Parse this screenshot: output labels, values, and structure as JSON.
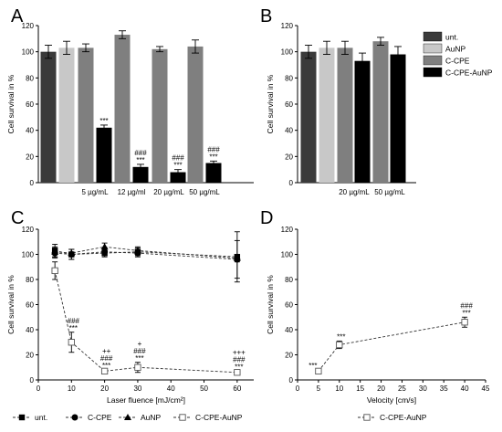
{
  "colors": {
    "unt": "#3a3a3a",
    "aunp": "#c8c8c8",
    "ccpe": "#7f7f7f",
    "ccpe_aunp": "#000000"
  },
  "legend_top": [
    "unt.",
    "AuNP",
    "C-CPE",
    "C-CPE-AuNP"
  ],
  "legend_bottom": [
    {
      "label": "unt.",
      "marker": "square-filled"
    },
    {
      "label": "C-CPE",
      "marker": "circle-filled"
    },
    {
      "label": "AuNP",
      "marker": "triangle-filled"
    },
    {
      "label": "C-CPE-AuNP",
      "marker": "square-open"
    }
  ],
  "legend_d": "C-CPE-AuNP",
  "chart_data": [
    {
      "panel": "A",
      "type": "bar",
      "ylabel": "Cell survival in %",
      "ylim": [
        0,
        120
      ],
      "yticks": [
        0,
        20,
        40,
        60,
        80,
        100,
        120
      ],
      "series_order": [
        "unt.",
        "AuNP",
        "C-CPE",
        "C-CPE-AuNP",
        "C-CPE",
        "C-CPE-AuNP",
        "C-CPE",
        "C-CPE-AuNP",
        "C-CPE",
        "C-CPE-AuNP"
      ],
      "values": [
        100,
        103,
        103,
        42,
        113,
        12,
        102,
        8,
        104,
        15
      ],
      "errors": [
        5,
        5,
        3,
        2,
        3,
        2,
        2,
        2,
        5,
        1.5
      ],
      "group_labels": [
        "5 µg/mL",
        "12 µg/ml",
        "20 µg/mL",
        "50 µg/mL"
      ],
      "annotations": [
        {
          "bar": 3,
          "lines": [
            "***"
          ]
        },
        {
          "bar": 5,
          "lines": [
            "###",
            "***"
          ]
        },
        {
          "bar": 7,
          "lines": [
            "###",
            "***"
          ]
        },
        {
          "bar": 9,
          "lines": [
            "###",
            "***"
          ]
        }
      ]
    },
    {
      "panel": "B",
      "type": "bar",
      "ylabel": "Cell survival in %",
      "ylim": [
        0,
        120
      ],
      "yticks": [
        0,
        20,
        40,
        60,
        80,
        100,
        120
      ],
      "series_order": [
        "unt.",
        "AuNP",
        "C-CPE",
        "C-CPE-AuNP",
        "C-CPE",
        "C-CPE-AuNP"
      ],
      "values": [
        100,
        103,
        103,
        93,
        108,
        98
      ],
      "errors": [
        5,
        5,
        5,
        6,
        3,
        6
      ],
      "group_labels": [
        "20 µg/mL",
        "50 µg/mL"
      ]
    },
    {
      "panel": "C",
      "type": "line",
      "xlabel": "Laser fluence [mJ/cm²]",
      "ylabel": "Cell survival in %",
      "xlim": [
        0,
        65
      ],
      "ylim": [
        0,
        120
      ],
      "xticks": [
        0,
        10,
        20,
        30,
        40,
        50,
        60
      ],
      "yticks": [
        0,
        20,
        40,
        60,
        80,
        100,
        120
      ],
      "x": [
        5,
        10,
        20,
        30,
        60
      ],
      "series": [
        {
          "name": "unt.",
          "values": [
            103,
            100,
            101,
            102,
            98
          ],
          "errors": [
            5,
            4,
            3,
            3,
            20
          ],
          "marker": "square-filled"
        },
        {
          "name": "C-CPE",
          "values": [
            101,
            100,
            102,
            101,
            96
          ],
          "errors": [
            4,
            4,
            3,
            3,
            15
          ],
          "marker": "circle-filled"
        },
        {
          "name": "AuNP",
          "values": [
            102,
            101,
            106,
            103,
            97
          ],
          "errors": [
            4,
            3,
            3,
            3,
            3
          ],
          "marker": "triangle-filled"
        },
        {
          "name": "C-CPE-AuNP",
          "values": [
            87,
            30,
            7,
            10,
            6
          ],
          "errors": [
            7,
            8,
            1,
            4,
            1
          ],
          "marker": "square-open"
        }
      ],
      "annotations": [
        {
          "x": 10,
          "lines": [
            "###",
            "***"
          ]
        },
        {
          "x": 20,
          "lines": [
            "++",
            "###",
            "***"
          ]
        },
        {
          "x": 30,
          "lines": [
            "+",
            "###",
            "***"
          ]
        },
        {
          "x": 60,
          "lines": [
            "+++",
            "###",
            "***"
          ]
        }
      ]
    },
    {
      "panel": "D",
      "type": "line",
      "xlabel": "Velocity [cm/s]",
      "ylabel": "Cell survival in %",
      "xlim": [
        0,
        45
      ],
      "ylim": [
        0,
        120
      ],
      "xticks": [
        0,
        5,
        10,
        15,
        20,
        25,
        30,
        35,
        40,
        45
      ],
      "yticks": [
        0,
        20,
        40,
        60,
        80,
        100,
        120
      ],
      "x": [
        5,
        10,
        40
      ],
      "series": [
        {
          "name": "C-CPE-AuNP",
          "values": [
            7,
            28,
            46
          ],
          "errors": [
            1,
            3,
            4
          ],
          "marker": "square-open"
        }
      ],
      "annotations": [
        {
          "x": 5,
          "lines": [
            "***"
          ]
        },
        {
          "x": 10,
          "lines": [
            "***"
          ]
        },
        {
          "x": 40,
          "lines": [
            "###",
            "***"
          ]
        }
      ]
    }
  ]
}
